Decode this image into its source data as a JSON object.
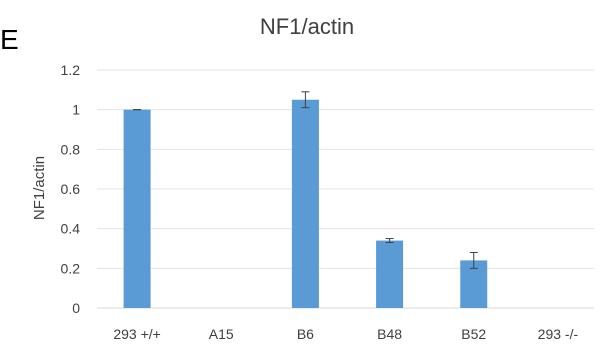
{
  "panel_label": "E",
  "chart_data": {
    "type": "bar",
    "title": "NF1/actin",
    "xlabel": "",
    "ylabel": "NF1/actin",
    "categories": [
      "293 +/+",
      "A15",
      "B6",
      "B48",
      "B52",
      "293 -/-"
    ],
    "series": [
      {
        "values": [
          1.0,
          0,
          1.05,
          0.34,
          0.24,
          0
        ],
        "errors": [
          0.0,
          0,
          0.04,
          0.01,
          0.04,
          0
        ]
      }
    ],
    "ylim": [
      0,
      1.2
    ],
    "yticks": [
      "0",
      "0.2",
      "0.4",
      "0.6",
      "0.8",
      "1",
      "1.2"
    ],
    "grid": true,
    "legend": "none",
    "bar_color": "#5b9bd5",
    "error_color": "#404040"
  }
}
